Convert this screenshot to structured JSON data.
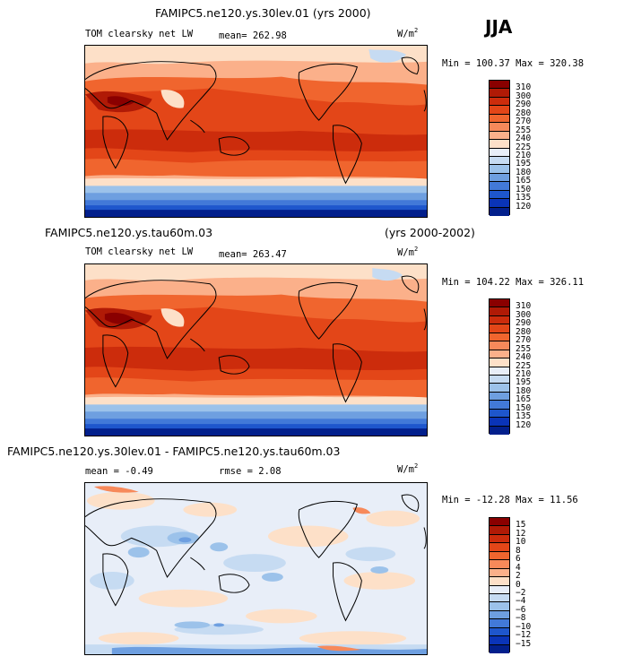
{
  "season": "JJA",
  "panels": [
    {
      "title": "FAMIPC5.ne120.ys.30lev.01 (yrs 2000)",
      "variable": "TOM clearsky net LW",
      "mean": "mean= 262.98",
      "units": "W/m",
      "units_exp": "2",
      "minmax": "Min = 100.37 Max = 320.38",
      "levels": [
        "310",
        "300",
        "290",
        "280",
        "270",
        "255",
        "240",
        "225",
        "210",
        "195",
        "180",
        "165",
        "150",
        "135",
        "120"
      ],
      "colors": [
        "#8a0000",
        "#b01a06",
        "#cc2c0c",
        "#e34618",
        "#f0652e",
        "#f7895a",
        "#fbb08a",
        "#fde0c8",
        "#e8eef8",
        "#c6dbf2",
        "#9cc2ea",
        "#6e9fe0",
        "#4279d8",
        "#1e56cc",
        "#0a34b8",
        "#021f8c"
      ]
    },
    {
      "title": "FAMIPC5.ne120.ys.tau60m.03",
      "title_right": "(yrs 2000-2002)",
      "variable": "TOM clearsky net LW",
      "mean": "mean= 263.47",
      "units": "W/m",
      "units_exp": "2",
      "minmax": "Min = 104.22 Max = 326.11",
      "levels": [
        "310",
        "300",
        "290",
        "280",
        "270",
        "255",
        "240",
        "225",
        "210",
        "195",
        "180",
        "165",
        "150",
        "135",
        "120"
      ],
      "colors": [
        "#8a0000",
        "#b01a06",
        "#cc2c0c",
        "#e34618",
        "#f0652e",
        "#f7895a",
        "#fbb08a",
        "#fde0c8",
        "#e8eef8",
        "#c6dbf2",
        "#9cc2ea",
        "#6e9fe0",
        "#4279d8",
        "#1e56cc",
        "#0a34b8",
        "#021f8c"
      ]
    },
    {
      "title": "FAMIPC5.ne120.ys.30lev.01 - FAMIPC5.ne120.ys.tau60m.03",
      "mean": "mean =   -0.49",
      "rmse": "rmse =    2.08",
      "units": "W/m",
      "units_exp": "2",
      "minmax": "Min = -12.28 Max =  11.56",
      "levels": [
        "15",
        "12",
        "10",
        "8",
        "6",
        "4",
        "2",
        "0",
        "−2",
        "−4",
        "−6",
        "−8",
        "−10",
        "−12",
        "−15"
      ],
      "colors": [
        "#8a0000",
        "#b01a06",
        "#cc2c0c",
        "#e34618",
        "#f0652e",
        "#f7895a",
        "#fbb08a",
        "#fde0c8",
        "#e8eef8",
        "#c6dbf2",
        "#9cc2ea",
        "#6e9fe0",
        "#4279d8",
        "#1e56cc",
        "#0a34b8",
        "#021f8c"
      ]
    }
  ]
}
